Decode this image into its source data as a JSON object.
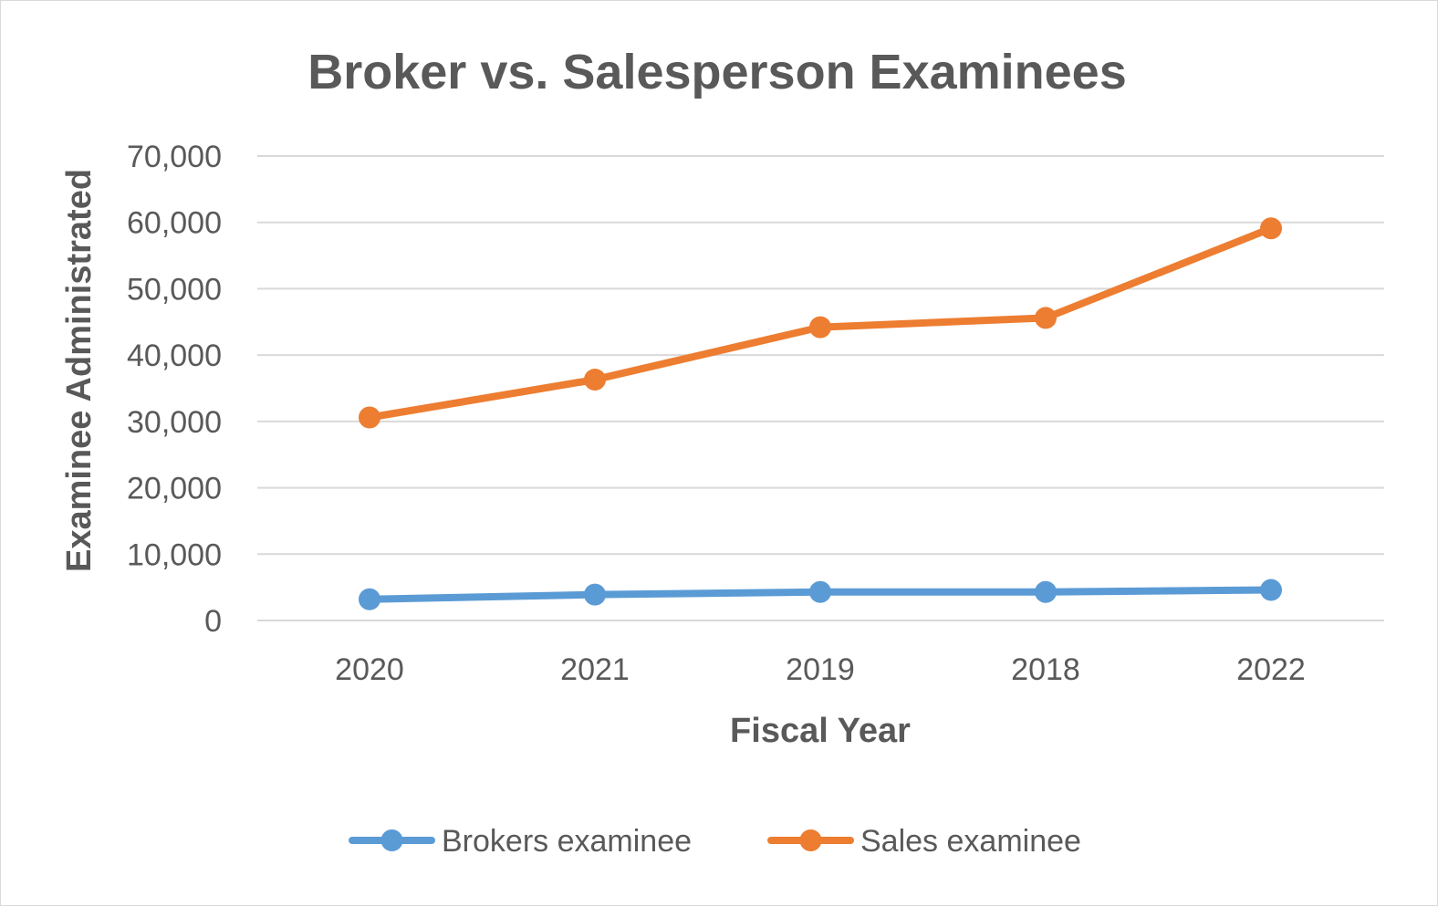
{
  "chart_data": {
    "type": "line",
    "title": "Broker vs. Salesperson Examinees",
    "xlabel": "Fiscal Year",
    "ylabel": "Examinee Administrated",
    "categories": [
      "2020",
      "2021",
      "2019",
      "2018",
      "2022"
    ],
    "ylim": [
      0,
      70000
    ],
    "yticks": [
      0,
      10000,
      20000,
      30000,
      40000,
      50000,
      60000,
      70000
    ],
    "ytick_labels": [
      "0",
      "10,000",
      "20,000",
      "30,000",
      "40,000",
      "50,000",
      "60,000",
      "70,000"
    ],
    "grid": true,
    "legend_position": "bottom",
    "series": [
      {
        "name": "Brokers examinee",
        "color": "#5b9bd5",
        "values": [
          3200,
          3900,
          4300,
          4300,
          4600
        ]
      },
      {
        "name": "Sales examinee",
        "color": "#ed7d31",
        "values": [
          30600,
          36300,
          44200,
          45600,
          59100
        ]
      }
    ]
  }
}
